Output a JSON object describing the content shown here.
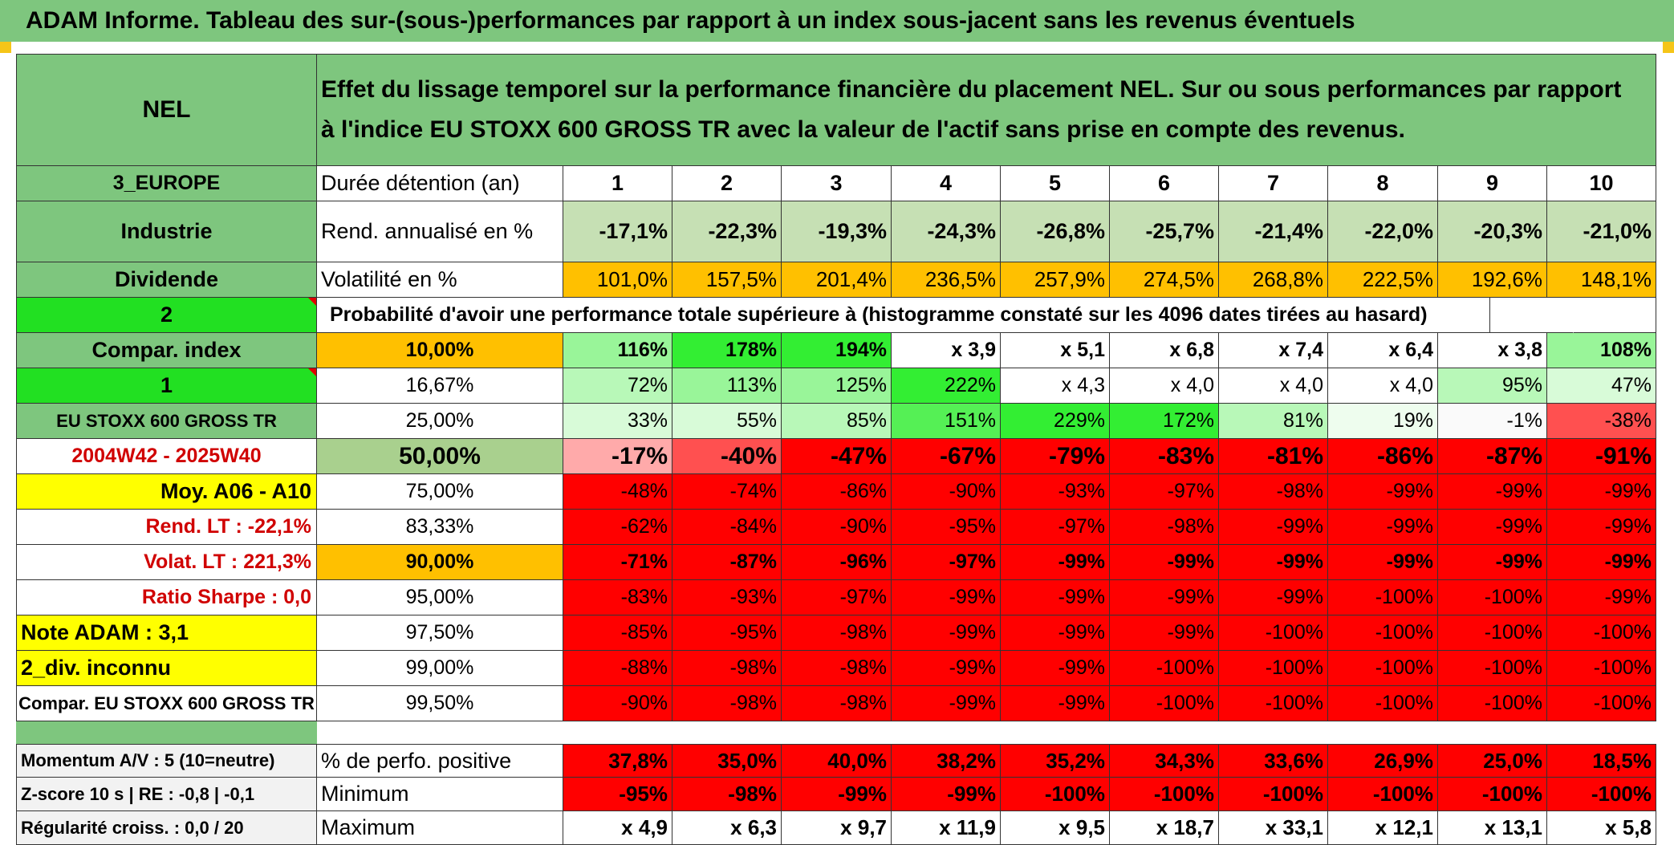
{
  "header": {
    "title": "ADAM Informe. Tableau des sur-(sous-)performances par rapport à un index sous-jacent sans les revenus éventuels"
  },
  "left": {
    "fund": "NEL",
    "region": "3_EUROPE",
    "sector": "Industrie",
    "dividend": "Dividende",
    "badge2": "2",
    "compar_index": "Compar. index",
    "badge1": "1",
    "index_name": "EU STOXX 600 GROSS TR",
    "period": "2004W42 - 2025W40",
    "moy": "Moy. A06 - A10",
    "rend_lt": "Rend. LT :   -22,1%",
    "volat_lt": "Volat. LT :   221,3%",
    "sharpe": "Ratio Sharpe :    0,0",
    "note": "Note ADAM : 3,1",
    "div": "2_div. inconnu",
    "compar_full": "Compar. EU STOXX 600 GROSS TR",
    "momentum": "Momentum A/V : 5 (10=neutre)",
    "zscore": "Z-score 10 s | RE : -0,8 | -0,1",
    "regularite": "Régularité croiss. : 0,0 / 20"
  },
  "description": "Effet du lissage temporel sur la performance financière du placement NEL. Sur ou sous performances par rapport à l'indice EU STOXX 600 GROSS TR avec la valeur de l'actif sans prise en compte des revenus.",
  "labels": {
    "duree": "Durée détention (an)",
    "rend": "Rend. annualisé en %",
    "vol": "Volatilité en %",
    "prob": "Probabilité d'avoir une performance totale supérieure à (histogramme constaté sur les 4096 dates tirées au hasard)",
    "pos": "% de perfo. positive",
    "min": "Minimum",
    "max": "Maximum"
  },
  "years": [
    "1",
    "2",
    "3",
    "4",
    "5",
    "6",
    "7",
    "8",
    "9",
    "10"
  ],
  "rend": [
    "-17,1%",
    "-22,3%",
    "-19,3%",
    "-24,3%",
    "-26,8%",
    "-25,7%",
    "-21,4%",
    "-22,0%",
    "-20,3%",
    "-21,0%"
  ],
  "vol": [
    "101,0%",
    "157,5%",
    "201,4%",
    "236,5%",
    "257,9%",
    "274,5%",
    "268,8%",
    "222,5%",
    "192,6%",
    "148,1%"
  ],
  "thresholds": [
    "10,00%",
    "16,67%",
    "25,00%",
    "50,00%",
    "75,00%",
    "83,33%",
    "90,00%",
    "95,00%",
    "97,50%",
    "99,00%",
    "99,50%"
  ],
  "prob_rows": [
    [
      "116%",
      "178%",
      "194%",
      "x 3,9",
      "x 5,1",
      "x 6,8",
      "x 7,4",
      "x 6,4",
      "x 3,8",
      "108%"
    ],
    [
      "72%",
      "113%",
      "125%",
      "222%",
      "x 4,3",
      "x 4,0",
      "x 4,0",
      "x 4,0",
      "95%",
      "47%"
    ],
    [
      "33%",
      "55%",
      "85%",
      "151%",
      "229%",
      "172%",
      "81%",
      "19%",
      "-1%",
      "-38%"
    ],
    [
      "-17%",
      "-40%",
      "-47%",
      "-67%",
      "-79%",
      "-83%",
      "-81%",
      "-86%",
      "-87%",
      "-91%"
    ],
    [
      "-48%",
      "-74%",
      "-86%",
      "-90%",
      "-93%",
      "-97%",
      "-98%",
      "-99%",
      "-99%",
      "-99%"
    ],
    [
      "-62%",
      "-84%",
      "-90%",
      "-95%",
      "-97%",
      "-98%",
      "-99%",
      "-99%",
      "-99%",
      "-99%"
    ],
    [
      "-71%",
      "-87%",
      "-96%",
      "-97%",
      "-99%",
      "-99%",
      "-99%",
      "-99%",
      "-99%",
      "-99%"
    ],
    [
      "-83%",
      "-93%",
      "-97%",
      "-99%",
      "-99%",
      "-99%",
      "-99%",
      "-100%",
      "-100%",
      "-99%"
    ],
    [
      "-85%",
      "-95%",
      "-98%",
      "-99%",
      "-99%",
      "-99%",
      "-100%",
      "-100%",
      "-100%",
      "-100%"
    ],
    [
      "-88%",
      "-98%",
      "-98%",
      "-99%",
      "-99%",
      "-100%",
      "-100%",
      "-100%",
      "-100%",
      "-100%"
    ],
    [
      "-90%",
      "-98%",
      "-98%",
      "-99%",
      "-99%",
      "-100%",
      "-100%",
      "-100%",
      "-100%",
      "-100%"
    ]
  ],
  "pos": [
    "37,8%",
    "35,0%",
    "40,0%",
    "38,2%",
    "35,2%",
    "34,3%",
    "33,6%",
    "26,9%",
    "25,0%",
    "18,5%"
  ],
  "min": [
    "-95%",
    "-98%",
    "-99%",
    "-99%",
    "-100%",
    "-100%",
    "-100%",
    "-100%",
    "-100%",
    "-100%"
  ],
  "max": [
    "x 4,9",
    "x 6,3",
    "x 9,7",
    "x 11,9",
    "x 9,5",
    "x 18,7",
    "x 33,1",
    "x 12,1",
    "x 13,1",
    "x 5,8"
  ],
  "colors": {
    "green_label": "#7ec67e",
    "bright_green": "#22e022",
    "orange": "#ffc000",
    "yellow": "#ffff00",
    "red": "#ff0000",
    "pale_green": "#c6e0b4",
    "band_green": "#a9d08e"
  }
}
